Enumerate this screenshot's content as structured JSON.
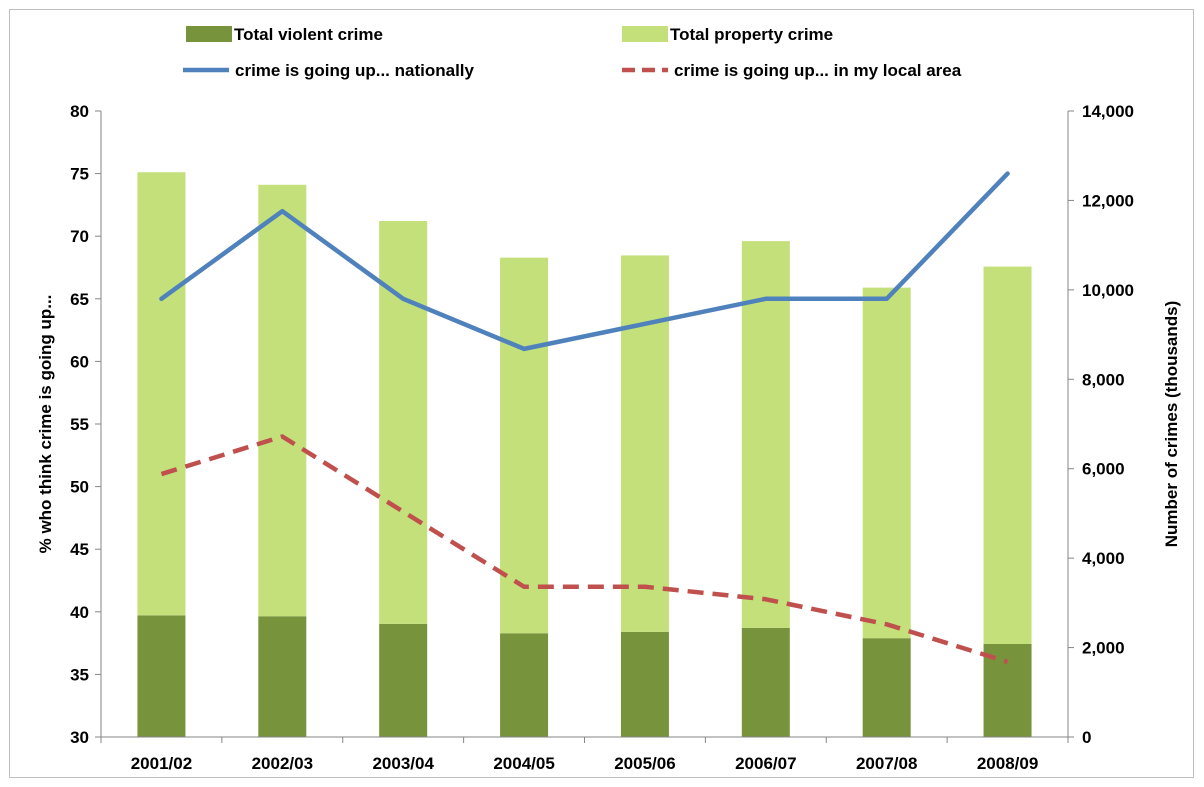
{
  "chart_data": {
    "type": "bar",
    "subtype": "stacked bar with line overlay, dual y-axis",
    "categories": [
      "2001/02",
      "2002/03",
      "2003/04",
      "2004/05",
      "2005/06",
      "2006/07",
      "2007/08",
      "2008/09"
    ],
    "bar_series": [
      {
        "name": "Total violent crime",
        "axis": "right",
        "color": "#77933c",
        "values": [
          2720,
          2700,
          2530,
          2320,
          2350,
          2440,
          2210,
          2080
        ]
      },
      {
        "name": "Total property crime",
        "axis": "right",
        "color": "#c3e07a",
        "values": [
          9910,
          9650,
          9010,
          8400,
          8420,
          8650,
          7840,
          8440
        ]
      }
    ],
    "line_series": [
      {
        "name": "crime is going up... nationally",
        "axis": "left",
        "color": "#4f81bd",
        "style": "solid",
        "values": [
          65,
          72,
          65,
          61,
          63,
          65,
          65,
          75
        ]
      },
      {
        "name": "crime is going up... in my local area",
        "axis": "left",
        "color": "#c0504d",
        "style": "dashed",
        "values": [
          51,
          54,
          48,
          42,
          42,
          41,
          39,
          36
        ]
      }
    ],
    "left_axis": {
      "label": "% who think crime is going up...",
      "ylim": [
        30,
        80
      ],
      "ticks": [
        "30",
        "35",
        "40",
        "45",
        "50",
        "55",
        "60",
        "65",
        "70",
        "75",
        "80"
      ]
    },
    "right_axis": {
      "label": "Number of crimes (thousands)",
      "ylim": [
        0,
        14000
      ],
      "ticks": [
        "0",
        "2,000",
        "4,000",
        "6,000",
        "8,000",
        "10,000",
        "12,000",
        "14,000"
      ]
    },
    "legend_position": "top",
    "grid": false
  }
}
